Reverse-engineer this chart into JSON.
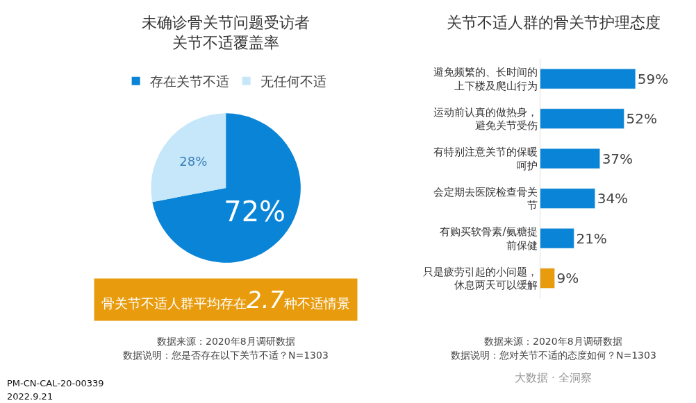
{
  "chart_data": [
    {
      "type": "pie",
      "title": "未确诊骨关节问题受访者关节不适覆盖率",
      "categories": [
        "存在关节不适",
        "无任何不适"
      ],
      "values": [
        72,
        28
      ],
      "value_labels": [
        "72%",
        "28%"
      ],
      "colors": [
        "#0a84d6",
        "#c6e7f9"
      ],
      "legend": "top",
      "annotations": [
        "骨关节不适人群平均存在2.7种不适情景",
        "数据来源：2020年8月调研数据",
        "数据说明：您是否存在以下关节不适？N=1303",
        "PM-CN-CAL-20-00339",
        "2022.9.21"
      ]
    },
    {
      "type": "bar",
      "orientation": "horizontal",
      "title": "关节不适人群的骨关节护理态度",
      "categories": [
        "避免频繁的、长时间的上下楼及爬山行为",
        "运动前认真的做热身，避免关节受伤",
        "有特别注意关节的保暖呵护",
        "会定期去医院检查骨关节",
        "有购买软骨素/氨糖提前保健",
        "只是疲劳引起的小问题，休息两天可以缓解"
      ],
      "values": [
        59,
        52,
        37,
        34,
        21,
        9
      ],
      "value_labels": [
        "59%",
        "52%",
        "37%",
        "34%",
        "21%",
        "9%"
      ],
      "colors": [
        "#0a84d6",
        "#0a84d6",
        "#0a84d6",
        "#0a84d6",
        "#0a84d6",
        "#e89b0c"
      ],
      "annotations": [
        "数据来源：2020年8月调研数据",
        "数据说明：您对关节不适的态度如何？N=1303",
        "大数据 · 全洞察"
      ]
    }
  ]
}
